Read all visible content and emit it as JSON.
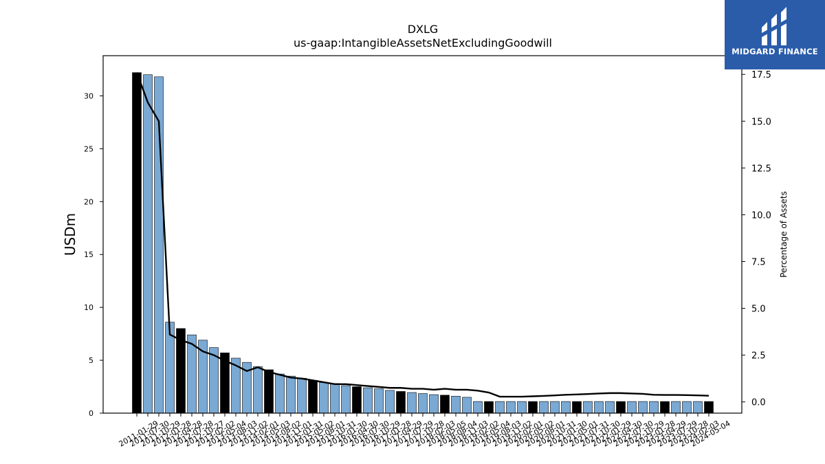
{
  "chart_data": {
    "type": "bar",
    "title": "DXLG",
    "subtitle": "us-gaap:IntangibleAssetsNetExcludingGoodwill",
    "ylabel": "USDm",
    "y2label": "Percentage of Assets",
    "ylim": [
      0,
      33.8
    ],
    "y2lim": [
      -0.6,
      18.5
    ],
    "yticks": [
      0,
      5,
      10,
      15,
      20,
      25,
      30
    ],
    "y2ticks": [
      "0.0",
      "2.5",
      "5.0",
      "7.5",
      "10.0",
      "12.5",
      "15.0",
      "17.5"
    ],
    "categories": [
      "2011-01-29",
      "2011-07-30",
      "2011-10-29",
      "2012-01-28",
      "2012-04-28",
      "2012-07-28",
      "2012-10-27",
      "2013-02-02",
      "2013-05-04",
      "2013-08-03",
      "2013-11-02",
      "2014-02-01",
      "2014-05-03",
      "2014-08-02",
      "2014-11-01",
      "2015-01-31",
      "2015-05-02",
      "2015-08-01",
      "2015-10-31",
      "2016-01-30",
      "2016-04-30",
      "2016-07-30",
      "2016-10-29",
      "2017-01-28",
      "2017-04-29",
      "2017-07-29",
      "2017-10-28",
      "2018-02-03",
      "2018-05-05",
      "2018-08-04",
      "2018-11-03",
      "2019-02-02",
      "2019-05-04",
      "2019-08-03",
      "2019-11-02",
      "2020-02-01",
      "2020-05-02",
      "2020-08-01",
      "2020-10-31",
      "2021-01-30",
      "2021-05-01",
      "2021-07-31",
      "2021-10-30",
      "2022-01-29",
      "2022-04-30",
      "2022-07-30",
      "2022-10-29",
      "2023-01-28",
      "2023-04-29",
      "2023-07-29",
      "2023-10-28",
      "2024-02-03",
      "2024-05-04"
    ],
    "series": [
      {
        "values": [
          32.2,
          32.0,
          31.8,
          8.6,
          8.0,
          7.4,
          6.9,
          6.2,
          5.7,
          5.2,
          4.8,
          4.4,
          4.1,
          3.7,
          3.5,
          3.3,
          3.1,
          2.9,
          2.8,
          2.6,
          2.5,
          2.4,
          2.3,
          2.15,
          2.05,
          1.95,
          1.85,
          1.75,
          1.7,
          1.6,
          1.5,
          1.1,
          1.1,
          1.1,
          1.1,
          1.1,
          1.1,
          1.1,
          1.1,
          1.1,
          1.1,
          1.1,
          1.1,
          1.1,
          1.1,
          1.1,
          1.1,
          1.1,
          1.1,
          1.1,
          1.1,
          1.1,
          1.1
        ]
      },
      {
        "values": [
          17.6,
          16.0,
          15.0,
          3.6,
          3.3,
          3.1,
          2.7,
          2.5,
          2.2,
          1.95,
          1.65,
          1.85,
          1.6,
          1.45,
          1.3,
          1.25,
          1.15,
          1.05,
          0.95,
          0.95,
          0.9,
          0.85,
          0.8,
          0.75,
          0.75,
          0.7,
          0.7,
          0.65,
          0.7,
          0.65,
          0.65,
          0.6,
          0.5,
          0.28,
          0.28,
          0.28,
          0.3,
          0.32,
          0.35,
          0.38,
          0.4,
          0.42,
          0.45,
          0.47,
          0.47,
          0.45,
          0.43,
          0.38,
          0.37,
          0.37,
          0.36,
          0.35,
          0.33
        ]
      }
    ],
    "highlight_color": "#000000",
    "bar_color": "#7aa9d4",
    "line_color": "#000000"
  },
  "logo": {
    "text": "MIDGARD FINANCE"
  }
}
